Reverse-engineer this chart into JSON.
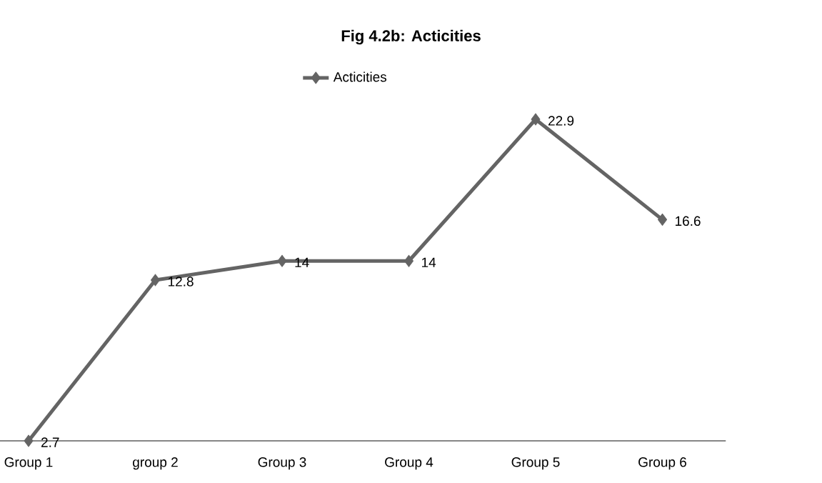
{
  "chart_data": {
    "type": "line",
    "title": "Fig 4.2b: Acticities",
    "categories": [
      "Group 1",
      "group 2",
      "Group 3",
      "Group 4",
      "Group 5",
      "Group 6"
    ],
    "series": [
      {
        "name": "Acticities",
        "color": "#646464",
        "values": [
          2.7,
          12.8,
          14,
          14,
          22.9,
          16.6
        ]
      }
    ],
    "marker": "diamond",
    "line_style": "solid",
    "data_labels": true,
    "legend": "top"
  }
}
